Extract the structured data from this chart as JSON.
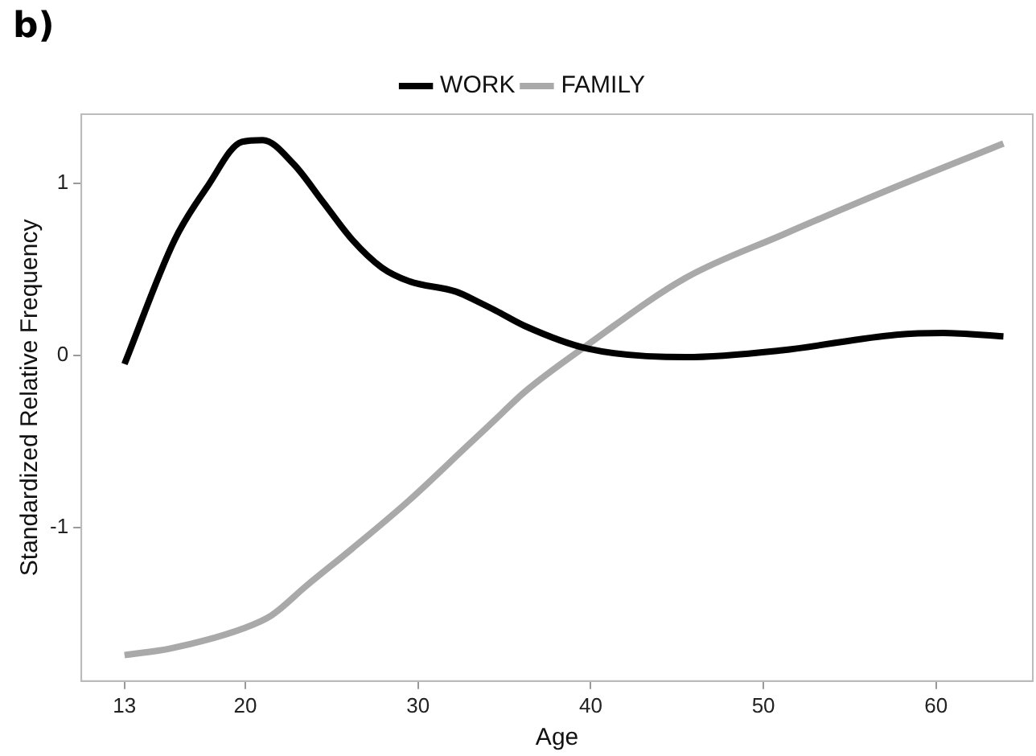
{
  "chart_data": {
    "type": "line",
    "annotations": [
      "b)"
    ],
    "xlabel": "Age",
    "ylabel": "Standardized Relative Frequency",
    "xlim": [
      10.5,
      65.6
    ],
    "xticks": [
      13,
      20,
      30,
      40,
      50,
      60
    ],
    "ylim": [
      -1.89,
      1.4
    ],
    "yticks": [
      -1,
      0,
      1
    ],
    "grid": false,
    "legend": "top",
    "marker": "none",
    "line_style": "solid",
    "series": [
      {
        "name": "WORK",
        "color": "#000000",
        "x": [
          13,
          15.9,
          17.8,
          19.8,
          21,
          22.8,
          24.5,
          26.2,
          27.9,
          29.5,
          32.2,
          33.5,
          34.5,
          36.2,
          39.8,
          45.5,
          51.1,
          57.7,
          60.4,
          63.9
        ],
        "values": [
          -0.05,
          0.67,
          0.98,
          1.24,
          1.25,
          1.11,
          0.89,
          0.67,
          0.51,
          0.43,
          0.37,
          0.31,
          0.26,
          0.17,
          0.04,
          -0.01,
          0.03,
          0.12,
          0.13,
          0.11
        ]
      },
      {
        "name": "FAMILY",
        "color": "#a9a9a9",
        "x": [
          13,
          15.7,
          20,
          21.5,
          23.5,
          26.2,
          29.5,
          32.8,
          34.5,
          36.2,
          39.8,
          45.5,
          51.1,
          57.7,
          63.9
        ],
        "values": [
          -1.74,
          -1.7,
          -1.58,
          -1.51,
          -1.34,
          -1.12,
          -0.84,
          -0.53,
          -0.37,
          -0.21,
          0.06,
          0.45,
          0.7,
          0.98,
          1.23
        ]
      }
    ]
  }
}
